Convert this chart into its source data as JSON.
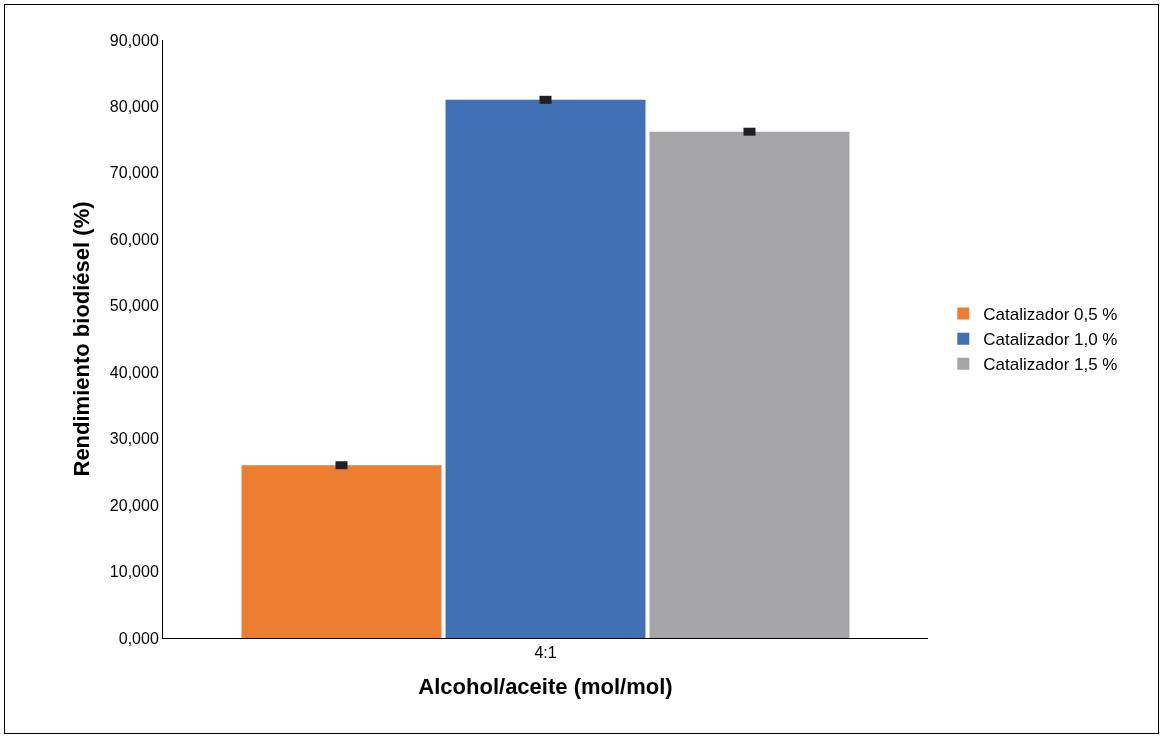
{
  "chart_data": {
    "type": "bar",
    "xlabel": "Alcohol/aceite (mol/mol)",
    "ylabel": "Rendimiento biodiésel (%)",
    "categories": [
      "4:1"
    ],
    "series": [
      {
        "name": "Catalizador 0,5 %",
        "color": "#ed7d31",
        "values": [
          26.0
        ],
        "errors": [
          0.6
        ]
      },
      {
        "name": "Catalizador 1,0 %",
        "color": "#4170b4",
        "values": [
          81.0
        ],
        "errors": [
          0.6
        ]
      },
      {
        "name": "Catalizador 1,5 %",
        "color": "#a5a5a8",
        "values": [
          76.2
        ],
        "errors": [
          0.6
        ]
      }
    ],
    "ylim": [
      0,
      90
    ],
    "yticks": [
      {
        "value": 0,
        "label": "0,000"
      },
      {
        "value": 10,
        "label": "10,000"
      },
      {
        "value": 20,
        "label": "20,000"
      },
      {
        "value": 30,
        "label": "30,000"
      },
      {
        "value": 40,
        "label": "40,000"
      },
      {
        "value": 50,
        "label": "50,000"
      },
      {
        "value": 60,
        "label": "60,000"
      },
      {
        "value": 70,
        "label": "70,000"
      },
      {
        "value": 80,
        "label": "80,000"
      },
      {
        "value": 90,
        "label": "90,000"
      }
    ],
    "grid": false,
    "legend": "right"
  }
}
